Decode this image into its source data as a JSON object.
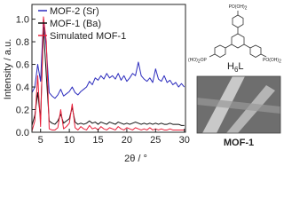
{
  "chart_data": {
    "type": "line",
    "x_label": "2θ / °",
    "y_label": "Intensity / a.u.",
    "x": [
      3.5,
      4,
      4.5,
      5,
      5.5,
      6,
      6.5,
      7,
      7.5,
      8,
      8.5,
      9,
      9.5,
      10,
      10.5,
      11,
      11.5,
      12,
      12.5,
      13,
      13.5,
      14,
      14.5,
      15,
      15.5,
      16,
      16.5,
      17,
      17.5,
      18,
      18.5,
      19,
      19.5,
      20,
      20.5,
      21,
      21.5,
      22,
      22.5,
      23,
      23.5,
      24,
      24.5,
      25,
      25.5,
      26,
      26.5,
      27,
      27.5,
      28,
      28.5,
      29,
      29.5,
      30
    ],
    "series": [
      {
        "name": "MOF-2 (Sr)",
        "color": "#2b2bbd",
        "values": [
          0.35,
          0.4,
          0.6,
          0.45,
          1.0,
          0.75,
          0.35,
          0.32,
          0.3,
          0.33,
          0.38,
          0.32,
          0.34,
          0.36,
          0.4,
          0.35,
          0.33,
          0.36,
          0.38,
          0.4,
          0.45,
          0.42,
          0.48,
          0.46,
          0.5,
          0.47,
          0.52,
          0.48,
          0.5,
          0.47,
          0.52,
          0.46,
          0.5,
          0.45,
          0.48,
          0.52,
          0.5,
          0.62,
          0.5,
          0.47,
          0.45,
          0.48,
          0.44,
          0.56,
          0.47,
          0.45,
          0.5,
          0.44,
          0.46,
          0.42,
          0.44,
          0.4,
          0.43,
          0.4
        ]
      },
      {
        "name": "MOF-1 (Ba)",
        "color": "#111111",
        "values": [
          0.06,
          0.15,
          0.35,
          0.12,
          0.93,
          0.5,
          0.1,
          0.08,
          0.07,
          0.1,
          0.16,
          0.08,
          0.1,
          0.12,
          0.22,
          0.09,
          0.07,
          0.08,
          0.07,
          0.08,
          0.1,
          0.08,
          0.09,
          0.07,
          0.09,
          0.08,
          0.07,
          0.09,
          0.08,
          0.07,
          0.09,
          0.08,
          0.07,
          0.08,
          0.07,
          0.08,
          0.09,
          0.08,
          0.07,
          0.08,
          0.07,
          0.08,
          0.07,
          0.08,
          0.07,
          0.08,
          0.07,
          0.07,
          0.08,
          0.07,
          0.07,
          0.07,
          0.06,
          0.06
        ]
      },
      {
        "name": "Simulated MOF-1",
        "color": "#e8203a",
        "values": [
          0.01,
          0.1,
          0.5,
          0.05,
          1.02,
          0.8,
          0.03,
          0.02,
          0.02,
          0.04,
          0.2,
          0.03,
          0.05,
          0.08,
          0.25,
          0.04,
          0.02,
          0.05,
          0.03,
          0.02,
          0.06,
          0.03,
          0.04,
          0.02,
          0.05,
          0.03,
          0.02,
          0.04,
          0.03,
          0.02,
          0.05,
          0.03,
          0.02,
          0.04,
          0.03,
          0.02,
          0.04,
          0.03,
          0.02,
          0.03,
          0.02,
          0.04,
          0.02,
          0.03,
          0.02,
          0.03,
          0.02,
          0.02,
          0.03,
          0.02,
          0.02,
          0.02,
          0.02,
          0.02
        ]
      }
    ],
    "xlim": [
      3.5,
      30.2
    ],
    "ylim": [
      0,
      1.13
    ],
    "xticks": [
      5,
      10,
      15,
      20,
      25,
      30
    ],
    "yticks": [
      {
        "value": 0,
        "label": "0.0"
      },
      {
        "value": 0.2,
        "label": "0.2"
      },
      {
        "value": 0.4,
        "label": "0.4"
      },
      {
        "value": 0.6,
        "label": "0.6"
      },
      {
        "value": 0.8,
        "label": "0.8"
      },
      {
        "value": 1.0,
        "label": "1.0"
      }
    ],
    "legend": "upper-left",
    "annotations": {
      "ligand_top": [
        "PO(OH)",
        "2"
      ],
      "ligand_left": [
        "(HO)",
        "2",
        "OP"
      ],
      "ligand_right": [
        "PO(OH)",
        "2"
      ],
      "ligand_name": [
        "H",
        "6",
        "L"
      ],
      "image_label": "MOF-1"
    }
  }
}
